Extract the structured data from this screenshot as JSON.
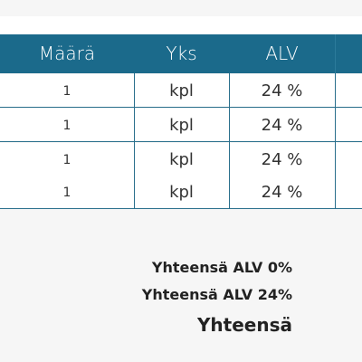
{
  "table": {
    "columns": [
      "Määrä",
      "Yks",
      "ALV"
    ],
    "rows": [
      [
        "1",
        "kpl",
        "24 %"
      ],
      [
        "1",
        "kpl",
        "24 %"
      ],
      [
        "1",
        "kpl",
        "24 %"
      ],
      [
        "1",
        "kpl",
        "24 %"
      ]
    ]
  },
  "totals": [
    "Yhteensä ALV 0%",
    "Yhteensä ALV 24%",
    "Yhteensä"
  ]
}
